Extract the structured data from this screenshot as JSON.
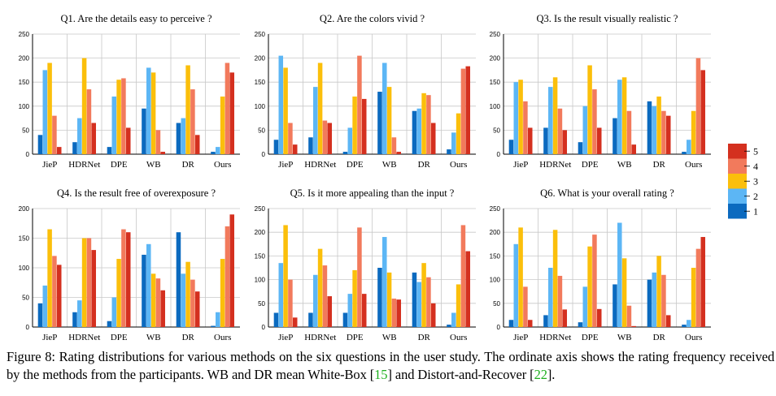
{
  "colors": {
    "r1": "#0b6abf",
    "r2": "#5cb6f5",
    "r3": "#fbbf0b",
    "r4": "#f27a5c",
    "r5": "#d4301f",
    "grid": "#c8c8c8"
  },
  "legend": {
    "entries": [
      "5",
      "4",
      "3",
      "2",
      "1"
    ]
  },
  "caption": {
    "figure_label": "Figure 8:",
    "text_part1": "Rating distributions for various methods on the six questions in the user study. The ordinate axis shows the rating frequency received by the methods from the participants. WB and DR mean White-Box [",
    "cite1": "15",
    "text_part2": "] and Distort-and-Recover [",
    "cite2": "22",
    "text_part3": "]."
  },
  "chart_data": [
    {
      "type": "bar",
      "title": "Q1. Are the details easy to perceive ?",
      "categories": [
        "JieP",
        "HDRNet",
        "DPE",
        "WB",
        "DR",
        "Ours"
      ],
      "ylim": [
        0,
        250
      ],
      "yticks": [
        0,
        50,
        100,
        150,
        200,
        250
      ],
      "series": [
        {
          "name": "1",
          "values": [
            40,
            25,
            15,
            95,
            65,
            5
          ]
        },
        {
          "name": "2",
          "values": [
            175,
            75,
            120,
            180,
            75,
            15
          ]
        },
        {
          "name": "3",
          "values": [
            190,
            200,
            155,
            170,
            185,
            120
          ]
        },
        {
          "name": "4",
          "values": [
            80,
            135,
            158,
            50,
            135,
            190
          ]
        },
        {
          "name": "5",
          "values": [
            15,
            65,
            55,
            5,
            40,
            170
          ]
        }
      ]
    },
    {
      "type": "bar",
      "title": "Q2. Are the colors vivid ?",
      "categories": [
        "JieP",
        "HDRNet",
        "DPE",
        "WB",
        "DR",
        "Ours"
      ],
      "ylim": [
        0,
        250
      ],
      "yticks": [
        0,
        50,
        100,
        150,
        200,
        250
      ],
      "series": [
        {
          "name": "1",
          "values": [
            30,
            35,
            5,
            130,
            90,
            10
          ]
        },
        {
          "name": "2",
          "values": [
            205,
            140,
            55,
            190,
            95,
            45
          ]
        },
        {
          "name": "3",
          "values": [
            180,
            190,
            120,
            140,
            127,
            85
          ]
        },
        {
          "name": "4",
          "values": [
            65,
            70,
            205,
            35,
            123,
            178
          ]
        },
        {
          "name": "5",
          "values": [
            20,
            65,
            115,
            5,
            65,
            183
          ]
        }
      ]
    },
    {
      "type": "bar",
      "title": "Q3. Is the result visually realistic ?",
      "categories": [
        "JieP",
        "HDRNet",
        "DPE",
        "WB",
        "DR",
        "Ours"
      ],
      "ylim": [
        0,
        250
      ],
      "yticks": [
        0,
        50,
        100,
        150,
        200,
        250
      ],
      "series": [
        {
          "name": "1",
          "values": [
            30,
            55,
            25,
            75,
            110,
            5
          ]
        },
        {
          "name": "2",
          "values": [
            150,
            140,
            100,
            155,
            100,
            30
          ]
        },
        {
          "name": "3",
          "values": [
            155,
            160,
            185,
            160,
            120,
            90
          ]
        },
        {
          "name": "4",
          "values": [
            110,
            95,
            135,
            90,
            90,
            200
          ]
        },
        {
          "name": "5",
          "values": [
            55,
            50,
            55,
            20,
            80,
            175
          ]
        }
      ]
    },
    {
      "type": "bar",
      "title": "Q4. Is the result free of overexposure ?",
      "categories": [
        "JieP",
        "HDRNet",
        "DPE",
        "WB",
        "DR",
        "Ours"
      ],
      "ylim": [
        0,
        200
      ],
      "yticks": [
        0,
        50,
        100,
        150,
        200
      ],
      "series": [
        {
          "name": "1",
          "values": [
            40,
            25,
            10,
            122,
            160,
            2
          ]
        },
        {
          "name": "2",
          "values": [
            70,
            45,
            50,
            140,
            90,
            25
          ]
        },
        {
          "name": "3",
          "values": [
            165,
            150,
            115,
            90,
            110,
            115
          ]
        },
        {
          "name": "4",
          "values": [
            120,
            150,
            165,
            82,
            80,
            170
          ]
        },
        {
          "name": "5",
          "values": [
            105,
            130,
            160,
            62,
            60,
            190
          ]
        }
      ]
    },
    {
      "type": "bar",
      "title": "Q5. Is it more appealing than the input ?",
      "categories": [
        "JieP",
        "HDRNet",
        "DPE",
        "WB",
        "DR",
        "Ours"
      ],
      "ylim": [
        0,
        250
      ],
      "yticks": [
        0,
        50,
        100,
        150,
        200,
        250
      ],
      "series": [
        {
          "name": "1",
          "values": [
            30,
            30,
            30,
            125,
            115,
            5
          ]
        },
        {
          "name": "2",
          "values": [
            135,
            110,
            70,
            190,
            95,
            30
          ]
        },
        {
          "name": "3",
          "values": [
            215,
            165,
            120,
            115,
            135,
            90
          ]
        },
        {
          "name": "4",
          "values": [
            100,
            130,
            210,
            60,
            105,
            215
          ]
        },
        {
          "name": "5",
          "values": [
            20,
            65,
            70,
            58,
            50,
            160
          ]
        }
      ]
    },
    {
      "type": "bar",
      "title": "Q6. What is your overall rating ?",
      "categories": [
        "JieP",
        "HDRNet",
        "DPE",
        "WB",
        "DR",
        "Ours"
      ],
      "ylim": [
        0,
        250
      ],
      "yticks": [
        0,
        50,
        100,
        150,
        200,
        250
      ],
      "series": [
        {
          "name": "1",
          "values": [
            15,
            25,
            10,
            90,
            100,
            5
          ]
        },
        {
          "name": "2",
          "values": [
            175,
            125,
            85,
            220,
            115,
            15
          ]
        },
        {
          "name": "3",
          "values": [
            210,
            205,
            170,
            145,
            150,
            125
          ]
        },
        {
          "name": "4",
          "values": [
            85,
            108,
            195,
            45,
            110,
            165
          ]
        },
        {
          "name": "5",
          "values": [
            15,
            37,
            38,
            2,
            25,
            190
          ]
        }
      ]
    }
  ]
}
